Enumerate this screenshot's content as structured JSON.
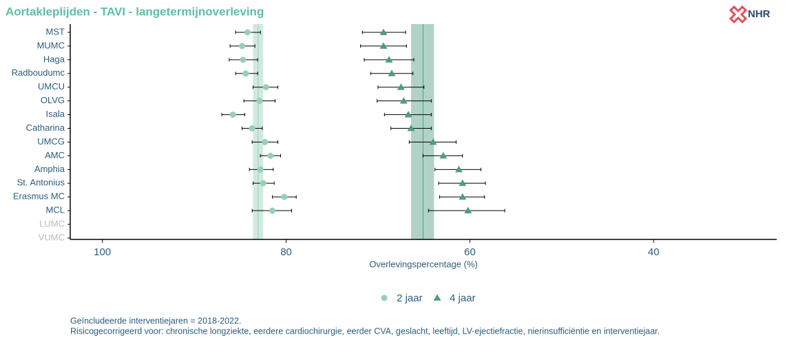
{
  "chart_data": {
    "type": "dot_errorbar",
    "title": "Aortakleplijden - TAVI - langetermijnoverleving",
    "logo": "NHR",
    "x_label": "Overlevingspercentage (%)",
    "categories": [
      "MST",
      "MUMC",
      "Haga",
      "Radboudumc",
      "UMCU",
      "OLVG",
      "Isala",
      "Catharina",
      "UMCG",
      "AMC",
      "Amphia",
      "St. Antonius",
      "Erasmus MC",
      "MCL",
      "LUMC",
      "VUMC"
    ],
    "series": [
      {
        "name": "2 jaar",
        "color": "#98cfb8",
        "marker": "circle",
        "values": [
          84.2,
          84.8,
          84.7,
          84.4,
          82.2,
          82.9,
          85.8,
          83.7,
          82.3,
          81.7,
          82.8,
          82.5,
          80.2,
          81.5,
          null,
          null
        ],
        "ci_high": [
          85.5,
          86.1,
          86.2,
          85.5,
          83.6,
          84.6,
          87.0,
          84.8,
          83.7,
          82.8,
          84.0,
          83.6,
          81.5,
          83.7,
          null,
          null
        ],
        "ci_low": [
          82.8,
          83.4,
          83.1,
          83.1,
          80.9,
          81.2,
          84.5,
          82.6,
          80.9,
          80.6,
          81.4,
          81.3,
          78.9,
          79.4,
          null,
          null
        ],
        "national": 83.05,
        "national_high": 83.6,
        "national_low": 82.5
      },
      {
        "name": "4 jaar",
        "color": "#4f9c82",
        "marker": "triangle",
        "values": [
          69.4,
          69.4,
          68.8,
          68.5,
          67.5,
          67.2,
          66.7,
          66.4,
          64.0,
          62.9,
          61.2,
          60.8,
          60.8,
          60.2,
          null,
          null
        ],
        "ci_high": [
          71.7,
          71.9,
          71.5,
          70.8,
          70.0,
          70.1,
          69.3,
          68.6,
          66.6,
          65.1,
          63.8,
          63.4,
          63.3,
          64.5,
          null,
          null
        ],
        "ci_low": [
          67.0,
          66.9,
          66.1,
          66.2,
          65.0,
          64.2,
          64.2,
          64.2,
          61.5,
          60.8,
          58.8,
          58.3,
          58.4,
          56.2,
          null,
          null
        ],
        "national": 65.1,
        "national_high": 66.4,
        "national_low": 63.9
      }
    ],
    "xlim": [
      103.5,
      26.6
    ],
    "xticks": [
      100,
      80,
      60,
      40
    ],
    "notes": [
      "Geïncludeerde interventiejaren = 2018-2022.",
      "Risicogecorrigeerd voor: chronische longziekte, eerdere cardiochirurgie, eerder CVA, geslacht, leeftijd, LV-ejectiefractie, nierinsufficiëntie en interventiejaar."
    ]
  }
}
